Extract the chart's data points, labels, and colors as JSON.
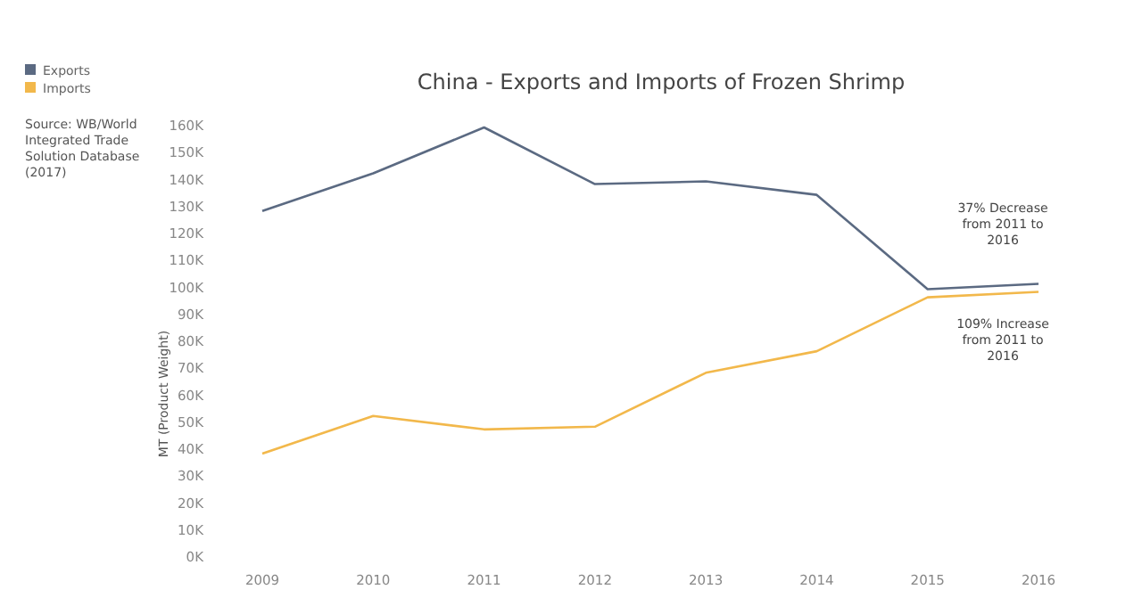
{
  "chart_data": {
    "type": "line",
    "title": "China - Exports and Imports of Frozen Shrimp",
    "ylabel": "MT (Product Weight)",
    "x": [
      2009,
      2010,
      2011,
      2012,
      2013,
      2014,
      2015,
      2016
    ],
    "series": [
      {
        "name": "Exports",
        "color": "#5b6a82",
        "values": [
          128000,
          142000,
          159000,
          138000,
          139000,
          134000,
          99000,
          101000
        ]
      },
      {
        "name": "Imports",
        "color": "#f2b84b",
        "values": [
          38000,
          52000,
          47000,
          48000,
          68000,
          76000,
          96000,
          98000
        ]
      }
    ],
    "xlim": [
      2009,
      2016
    ],
    "xticks": [
      2009,
      2010,
      2011,
      2012,
      2013,
      2014,
      2015,
      2016
    ],
    "ylim": [
      0,
      160000
    ],
    "yticks": [
      {
        "value": 0,
        "label": "0K"
      },
      {
        "value": 10000,
        "label": "10K"
      },
      {
        "value": 20000,
        "label": "20K"
      },
      {
        "value": 30000,
        "label": "30K"
      },
      {
        "value": 40000,
        "label": "40K"
      },
      {
        "value": 50000,
        "label": "50K"
      },
      {
        "value": 60000,
        "label": "60K"
      },
      {
        "value": 70000,
        "label": "70K"
      },
      {
        "value": 80000,
        "label": "80K"
      },
      {
        "value": 90000,
        "label": "90K"
      },
      {
        "value": 100000,
        "label": "100K"
      },
      {
        "value": 110000,
        "label": "110K"
      },
      {
        "value": 120000,
        "label": "120K"
      },
      {
        "value": 130000,
        "label": "130K"
      },
      {
        "value": 140000,
        "label": "140K"
      },
      {
        "value": 150000,
        "label": "150K"
      },
      {
        "value": 160000,
        "label": "160K"
      }
    ],
    "legend": "top left",
    "grid": false,
    "marker": "none",
    "line_style": "solid",
    "annotations": [
      "Source: WB/World Integrated Trade Solution Database (2017)",
      {
        "text": "37% Decrease from 2011 to 2016",
        "x": 2016,
        "y": 101000
      },
      {
        "text": "109% Increase from 2011 to 2016",
        "x": 2016,
        "y": 98000
      }
    ]
  }
}
